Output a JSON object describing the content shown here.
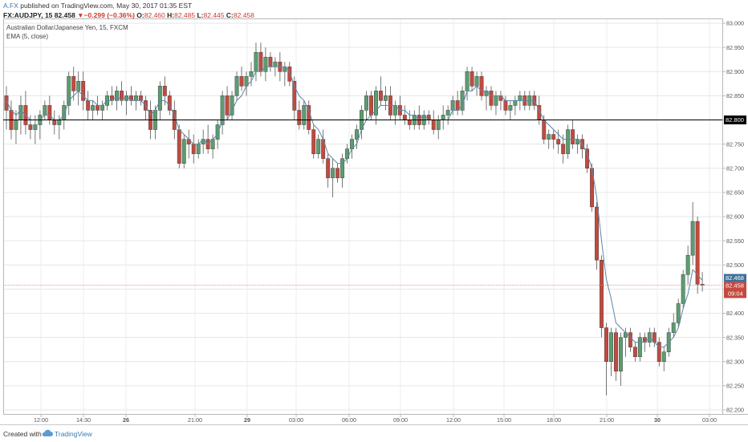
{
  "header": {
    "author": "A.FX",
    "published": "published on TradingView.com, May 30, 2017 01:35 EST",
    "symbol": "FX:AUDJPY, 15",
    "last": "82.458",
    "arrow": "▼",
    "change": "−0.299 (−0.36%)",
    "o_label": "O:",
    "o_value": "82.460",
    "h_label": "H:",
    "h_value": "82.485",
    "l_label": "L:",
    "l_value": "82.445",
    "c_label": "C:",
    "c_value": "82.458"
  },
  "legend": {
    "series_title": "Australian Dollar/Japanese Yen, 15, FXCM",
    "indicator": "EMA (5, close)"
  },
  "footer": {
    "created": "Created with",
    "brand": "TradingView"
  },
  "colors": {
    "up": "#5a9e6f",
    "down": "#c4493e",
    "ema": "#5b87a8",
    "hline": "#000000",
    "price_line": "#e08a85",
    "ema_tag": "#3f6f9a"
  },
  "chart_data": {
    "type": "candlestick",
    "ylim": [
      82.2,
      83.0
    ],
    "yticks": [
      "83.000",
      "82.950",
      "82.900",
      "82.850",
      "82.800",
      "82.750",
      "82.700",
      "82.650",
      "82.600",
      "82.550",
      "82.500",
      "82.450",
      "82.400",
      "82.350",
      "82.300",
      "82.250",
      "82.200"
    ],
    "xticks": [
      "12:00",
      "14:30",
      "26",
      "21:00",
      "29",
      "03:00",
      "06:00",
      "09:00",
      "12:00",
      "15:00",
      "18:00",
      "21:00",
      "30",
      "03:00"
    ],
    "horizontal_line": "82.800",
    "current_price": "82.458",
    "ema_value": "82.468",
    "countdown": "09:04",
    "candles": [
      [
        82.85,
        82.87,
        82.78,
        82.82
      ],
      [
        82.82,
        82.84,
        82.76,
        82.78
      ],
      [
        82.78,
        82.82,
        82.75,
        82.8
      ],
      [
        82.8,
        82.85,
        82.77,
        82.83
      ],
      [
        82.83,
        82.86,
        82.77,
        82.79
      ],
      [
        82.79,
        82.81,
        82.76,
        82.78
      ],
      [
        82.78,
        82.81,
        82.75,
        82.79
      ],
      [
        82.79,
        82.82,
        82.76,
        82.81
      ],
      [
        82.81,
        82.84,
        82.8,
        82.83
      ],
      [
        82.83,
        82.85,
        82.79,
        82.8
      ],
      [
        82.8,
        82.82,
        82.77,
        82.79
      ],
      [
        82.79,
        82.81,
        82.76,
        82.8
      ],
      [
        82.8,
        82.84,
        82.78,
        82.83
      ],
      [
        82.83,
        82.9,
        82.81,
        82.89
      ],
      [
        82.89,
        82.91,
        82.84,
        82.86
      ],
      [
        82.86,
        82.9,
        82.83,
        82.88
      ],
      [
        82.88,
        82.9,
        82.82,
        82.84
      ],
      [
        82.84,
        82.86,
        82.8,
        82.82
      ],
      [
        82.82,
        82.84,
        82.8,
        82.83
      ],
      [
        82.83,
        82.85,
        82.81,
        82.82
      ],
      [
        82.82,
        82.84,
        82.8,
        82.83
      ],
      [
        82.83,
        82.86,
        82.82,
        82.85
      ],
      [
        82.85,
        82.87,
        82.83,
        82.84
      ],
      [
        82.84,
        82.87,
        82.82,
        82.86
      ],
      [
        82.86,
        82.88,
        82.83,
        82.84
      ],
      [
        82.84,
        82.86,
        82.81,
        82.85
      ],
      [
        82.85,
        82.87,
        82.83,
        82.84
      ],
      [
        82.84,
        82.86,
        82.82,
        82.85
      ],
      [
        82.85,
        82.86,
        82.83,
        82.84
      ],
      [
        82.84,
        82.85,
        82.8,
        82.82
      ],
      [
        82.82,
        82.84,
        82.76,
        82.78
      ],
      [
        82.78,
        82.83,
        82.76,
        82.82
      ],
      [
        82.82,
        82.88,
        82.8,
        82.87
      ],
      [
        82.87,
        82.89,
        82.83,
        82.85
      ],
      [
        82.85,
        82.86,
        82.81,
        82.82
      ],
      [
        82.82,
        82.84,
        82.76,
        82.78
      ],
      [
        82.78,
        82.79,
        82.7,
        82.71
      ],
      [
        82.71,
        82.77,
        82.7,
        82.76
      ],
      [
        82.76,
        82.78,
        82.72,
        82.75
      ],
      [
        82.75,
        82.77,
        82.71,
        82.73
      ],
      [
        82.73,
        82.76,
        82.72,
        82.75
      ],
      [
        82.75,
        82.78,
        82.73,
        82.76
      ],
      [
        82.76,
        82.79,
        82.73,
        82.74
      ],
      [
        82.74,
        82.77,
        82.72,
        82.76
      ],
      [
        82.76,
        82.8,
        82.74,
        82.79
      ],
      [
        82.79,
        82.86,
        82.77,
        82.85
      ],
      [
        82.85,
        82.87,
        82.8,
        82.81
      ],
      [
        82.81,
        82.86,
        82.8,
        82.85
      ],
      [
        82.85,
        82.9,
        82.84,
        82.89
      ],
      [
        82.89,
        82.91,
        82.86,
        82.87
      ],
      [
        82.87,
        82.9,
        82.85,
        82.89
      ],
      [
        82.89,
        82.92,
        82.87,
        82.9
      ],
      [
        82.9,
        82.96,
        82.88,
        82.94
      ],
      [
        82.94,
        82.96,
        82.89,
        82.9
      ],
      [
        82.9,
        82.95,
        82.88,
        82.93
      ],
      [
        82.93,
        82.94,
        82.9,
        82.91
      ],
      [
        82.91,
        82.93,
        82.89,
        82.92
      ],
      [
        82.92,
        82.94,
        82.88,
        82.9
      ],
      [
        82.9,
        82.92,
        82.87,
        82.91
      ],
      [
        82.91,
        82.92,
        82.87,
        82.88
      ],
      [
        82.88,
        82.89,
        82.8,
        82.82
      ],
      [
        82.82,
        82.84,
        82.78,
        82.79
      ],
      [
        82.79,
        82.84,
        82.78,
        82.83
      ],
      [
        82.83,
        82.84,
        82.77,
        82.78
      ],
      [
        82.78,
        82.79,
        82.72,
        82.73
      ],
      [
        82.73,
        82.77,
        82.72,
        82.76
      ],
      [
        82.76,
        82.78,
        82.71,
        82.72
      ],
      [
        82.72,
        82.73,
        82.66,
        82.68
      ],
      [
        82.68,
        82.72,
        82.64,
        82.7
      ],
      [
        82.7,
        82.71,
        82.67,
        82.68
      ],
      [
        82.68,
        82.73,
        82.66,
        82.72
      ],
      [
        82.72,
        82.75,
        82.71,
        82.74
      ],
      [
        82.74,
        82.77,
        82.72,
        82.76
      ],
      [
        82.76,
        82.79,
        82.74,
        82.78
      ],
      [
        82.78,
        82.83,
        82.76,
        82.82
      ],
      [
        82.82,
        82.86,
        82.8,
        82.85
      ],
      [
        82.85,
        82.86,
        82.8,
        82.81
      ],
      [
        82.81,
        82.87,
        82.79,
        82.86
      ],
      [
        82.86,
        82.89,
        82.83,
        82.84
      ],
      [
        82.84,
        82.87,
        82.82,
        82.85
      ],
      [
        82.85,
        82.87,
        82.8,
        82.81
      ],
      [
        82.81,
        82.84,
        82.79,
        82.83
      ],
      [
        82.83,
        82.85,
        82.8,
        82.81
      ],
      [
        82.81,
        82.83,
        82.79,
        82.8
      ],
      [
        82.8,
        82.82,
        82.78,
        82.79
      ],
      [
        82.79,
        82.82,
        82.78,
        82.81
      ],
      [
        82.81,
        82.83,
        82.78,
        82.79
      ],
      [
        82.79,
        82.82,
        82.78,
        82.81
      ],
      [
        82.81,
        82.82,
        82.79,
        82.8
      ],
      [
        82.8,
        82.82,
        82.77,
        82.78
      ],
      [
        82.78,
        82.81,
        82.76,
        82.8
      ],
      [
        82.8,
        82.83,
        82.78,
        82.81
      ],
      [
        82.81,
        82.83,
        82.79,
        82.82
      ],
      [
        82.82,
        82.85,
        82.81,
        82.84
      ],
      [
        82.84,
        82.86,
        82.81,
        82.82
      ],
      [
        82.82,
        82.87,
        82.81,
        82.86
      ],
      [
        82.86,
        82.91,
        82.84,
        82.9
      ],
      [
        82.9,
        82.91,
        82.86,
        82.87
      ],
      [
        82.87,
        82.9,
        82.85,
        82.89
      ],
      [
        82.89,
        82.9,
        82.84,
        82.85
      ],
      [
        82.85,
        82.87,
        82.82,
        82.86
      ],
      [
        82.86,
        82.87,
        82.82,
        82.83
      ],
      [
        82.83,
        82.86,
        82.81,
        82.85
      ],
      [
        82.85,
        82.86,
        82.82,
        82.84
      ],
      [
        82.84,
        82.85,
        82.81,
        82.82
      ],
      [
        82.82,
        82.84,
        82.8,
        82.83
      ],
      [
        82.83,
        82.85,
        82.81,
        82.84
      ],
      [
        82.84,
        82.86,
        82.82,
        82.85
      ],
      [
        82.85,
        82.86,
        82.82,
        82.83
      ],
      [
        82.83,
        82.86,
        82.82,
        82.85
      ],
      [
        82.85,
        82.86,
        82.82,
        82.83
      ],
      [
        82.83,
        82.85,
        82.79,
        82.8
      ],
      [
        82.8,
        82.81,
        82.75,
        82.76
      ],
      [
        82.76,
        82.78,
        82.74,
        82.77
      ],
      [
        82.77,
        82.78,
        82.74,
        82.76
      ],
      [
        82.76,
        82.78,
        82.73,
        82.75
      ],
      [
        82.75,
        82.77,
        82.71,
        82.73
      ],
      [
        82.73,
        82.79,
        82.72,
        82.78
      ],
      [
        82.78,
        82.8,
        82.74,
        82.75
      ],
      [
        82.75,
        82.77,
        82.73,
        82.76
      ],
      [
        82.76,
        82.77,
        82.72,
        82.74
      ],
      [
        82.74,
        82.75,
        82.69,
        82.7
      ],
      [
        82.7,
        82.71,
        82.61,
        82.62
      ],
      [
        82.62,
        82.63,
        82.49,
        82.51
      ],
      [
        82.51,
        82.52,
        82.35,
        82.37
      ],
      [
        82.37,
        82.38,
        82.23,
        82.3
      ],
      [
        82.3,
        82.37,
        82.27,
        82.36
      ],
      [
        82.36,
        82.37,
        82.26,
        82.28
      ],
      [
        82.28,
        82.36,
        82.25,
        82.35
      ],
      [
        82.35,
        82.37,
        82.31,
        82.36
      ],
      [
        82.36,
        82.37,
        82.32,
        82.33
      ],
      [
        82.33,
        82.34,
        82.3,
        82.31
      ],
      [
        82.31,
        82.36,
        82.3,
        82.35
      ],
      [
        82.35,
        82.36,
        82.32,
        82.34
      ],
      [
        82.34,
        82.37,
        82.33,
        82.36
      ],
      [
        82.36,
        82.37,
        82.33,
        82.34
      ],
      [
        82.34,
        82.35,
        82.29,
        82.3
      ],
      [
        82.3,
        82.33,
        82.28,
        82.32
      ],
      [
        82.32,
        82.37,
        82.31,
        82.36
      ],
      [
        82.36,
        82.4,
        82.35,
        82.38
      ],
      [
        82.38,
        82.43,
        82.37,
        82.42
      ],
      [
        82.42,
        82.49,
        82.41,
        82.48
      ],
      [
        82.48,
        82.54,
        82.46,
        82.52
      ],
      [
        82.52,
        82.63,
        82.5,
        82.59
      ],
      [
        82.59,
        82.6,
        82.44,
        82.46
      ],
      [
        82.46,
        82.485,
        82.445,
        82.458
      ]
    ],
    "ema": [
      82.84,
      82.82,
      82.81,
      82.82,
      82.81,
      82.8,
      82.8,
      82.8,
      82.81,
      82.81,
      82.8,
      82.8,
      82.81,
      82.84,
      82.85,
      82.86,
      82.85,
      82.84,
      82.84,
      82.83,
      82.83,
      82.84,
      82.84,
      82.85,
      82.84,
      82.85,
      82.84,
      82.84,
      82.84,
      82.83,
      82.81,
      82.82,
      82.84,
      82.84,
      82.83,
      82.81,
      82.78,
      82.77,
      82.76,
      82.75,
      82.75,
      82.76,
      82.75,
      82.76,
      82.77,
      82.8,
      82.8,
      82.82,
      82.84,
      82.85,
      82.87,
      82.88,
      82.9,
      82.9,
      82.91,
      82.91,
      82.91,
      82.91,
      82.91,
      82.9,
      82.87,
      82.85,
      82.84,
      82.82,
      82.79,
      82.78,
      82.76,
      82.73,
      82.72,
      82.71,
      82.71,
      82.72,
      82.74,
      82.75,
      82.78,
      82.8,
      82.81,
      82.82,
      82.83,
      82.83,
      82.83,
      82.83,
      82.82,
      82.82,
      82.81,
      82.81,
      82.8,
      82.81,
      82.8,
      82.8,
      82.8,
      82.8,
      82.8,
      82.82,
      82.82,
      82.83,
      82.86,
      82.86,
      82.87,
      82.86,
      82.86,
      82.85,
      82.85,
      82.85,
      82.84,
      82.84,
      82.84,
      82.84,
      82.84,
      82.84,
      82.84,
      82.82,
      82.8,
      82.79,
      82.78,
      82.77,
      82.76,
      82.76,
      82.76,
      82.76,
      82.75,
      82.73,
      82.7,
      82.64,
      82.55,
      82.47,
      82.43,
      82.38,
      82.37,
      82.36,
      82.35,
      82.34,
      82.34,
      82.34,
      82.35,
      82.34,
      82.33,
      82.33,
      82.34,
      82.35,
      82.37,
      82.41,
      82.44,
      82.49,
      82.48,
      82.468
    ]
  }
}
